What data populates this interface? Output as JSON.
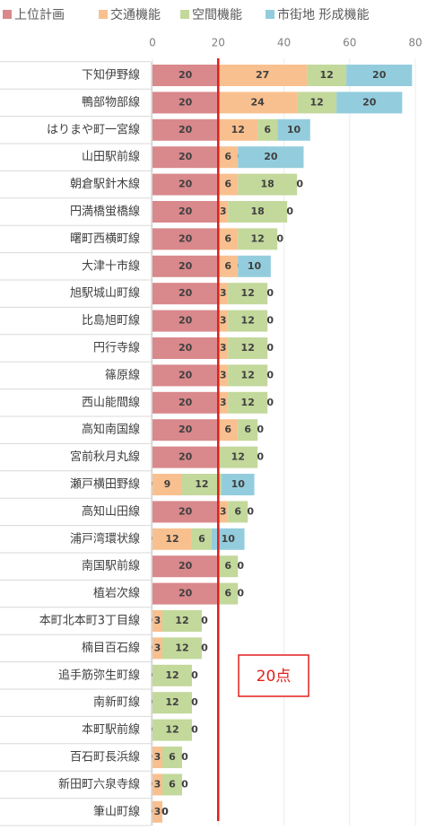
{
  "chart_data": {
    "type": "stacked_bar_horizontal",
    "categories": [
      "下知伊野線",
      "鴨部物部線",
      "はりまや町一宮線",
      "山田駅前線",
      "朝倉駅針木線",
      "円満橋蛍橋線",
      "曙町西横町線",
      "大津十市線",
      "旭駅城山町線",
      "比島旭町線",
      "円行寺線",
      "篠原線",
      "西山能間線",
      "高知南国線",
      "宮前秋月丸線",
      "瀬戸横田野線",
      "高知山田線",
      "浦戸湾環状線",
      "南国駅前線",
      "植岩次線",
      "本町北本町3丁目線",
      "楠目百石線",
      "追手筋弥生町線",
      "南新町線",
      "本町駅前線",
      "百石町長浜線",
      "新田町六泉寺線",
      "筆山町線"
    ],
    "series": [
      {
        "name": "上位計画",
        "color": "#d9888c",
        "values": [
          20,
          20,
          20,
          20,
          20,
          20,
          20,
          20,
          20,
          20,
          20,
          20,
          20,
          20,
          20,
          0,
          20,
          0,
          20,
          20,
          0,
          0,
          0,
          0,
          0,
          0,
          0,
          0
        ]
      },
      {
        "name": "交通機能",
        "color": "#f9c08f",
        "values": [
          27,
          24,
          12,
          6,
          6,
          3,
          6,
          6,
          3,
          3,
          3,
          3,
          3,
          6,
          0,
          9,
          3,
          12,
          0,
          0,
          3,
          3,
          0,
          0,
          0,
          3,
          3,
          3
        ]
      },
      {
        "name": "空間機能",
        "color": "#c3d89b",
        "values": [
          12,
          12,
          6,
          0,
          18,
          18,
          12,
          0,
          12,
          12,
          12,
          12,
          12,
          6,
          12,
          12,
          6,
          6,
          6,
          6,
          12,
          12,
          12,
          12,
          12,
          6,
          6,
          0
        ]
      },
      {
        "name": "市街地 形成機能",
        "color": "#93cddd",
        "values": [
          20,
          20,
          10,
          20,
          0,
          0,
          0,
          10,
          0,
          0,
          0,
          0,
          0,
          0,
          0,
          10,
          0,
          10,
          0,
          0,
          0,
          0,
          0,
          0,
          0,
          0,
          0,
          0
        ]
      }
    ],
    "xlim": [
      0,
      80
    ],
    "xticks": [
      0,
      20,
      40,
      60,
      80
    ],
    "grid": true,
    "legend": "top",
    "reference_line": {
      "value": 20,
      "label": "20点",
      "color": "#e0201e"
    }
  }
}
